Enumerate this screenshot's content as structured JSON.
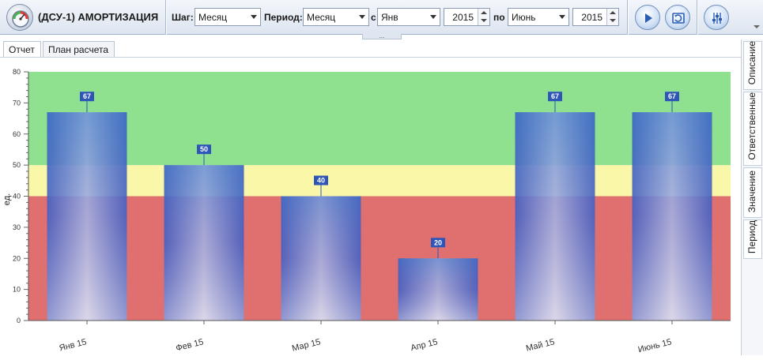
{
  "app": {
    "title": "(ДСУ-1) АМОРТИЗАЦИЯ",
    "icon": "gauge-icon"
  },
  "toolbar": {
    "step_label": "Шаг:",
    "step_value": "Месяц",
    "period_label": "Период:",
    "period_value": "Месяц",
    "from_label": "с",
    "from_month": "Янв",
    "from_year": "2015",
    "to_label": "по",
    "to_month": "Июнь",
    "to_year": "2015",
    "grip": "...",
    "buttons": [
      "play-icon",
      "refresh-icon",
      "settings-sliders-icon"
    ]
  },
  "tabs": [
    {
      "label": "Отчет",
      "active": true
    },
    {
      "label": "План расчета",
      "active": false
    }
  ],
  "side_tabs": [
    "Описание",
    "Ответственные",
    "Значение",
    "Период"
  ],
  "colors": {
    "zone_red": "#e07070",
    "zone_yellow": "#fbf7a8",
    "zone_green": "#8fe08f",
    "bar": "#4f6fc9",
    "label_bg": "#2e56b8"
  },
  "chart_data": {
    "type": "bar",
    "categories": [
      "Янв 15",
      "Фев 15",
      "Мар 15",
      "Апр 15",
      "Май 15",
      "Июнь 15"
    ],
    "values": [
      67,
      50,
      40,
      20,
      67,
      67
    ],
    "ylabel": "ед.",
    "ylim": [
      0,
      80
    ],
    "yticks": [
      0,
      10,
      20,
      30,
      40,
      50,
      60,
      70,
      80
    ],
    "zones": [
      {
        "from": 0,
        "to": 40,
        "color": "red"
      },
      {
        "from": 40,
        "to": 50,
        "color": "yellow"
      },
      {
        "from": 50,
        "to": 80,
        "color": "green"
      }
    ],
    "data_labels": true,
    "grid": false
  }
}
